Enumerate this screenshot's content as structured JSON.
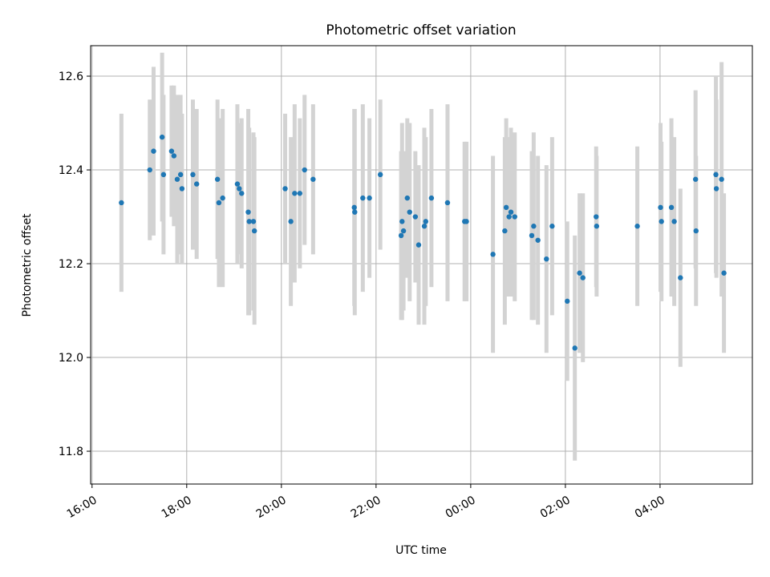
{
  "chart_data": {
    "type": "scatter",
    "title": "Photometric offset variation",
    "xlabel": "UTC time",
    "ylabel": "Photometric offset",
    "x_tick_labels": [
      "16:00",
      "18:00",
      "20:00",
      "22:00",
      "00:00",
      "02:00",
      "04:00"
    ],
    "x_tick_hours": [
      16,
      18,
      20,
      22,
      24,
      26,
      28
    ],
    "y_tick_labels": [
      "11.8",
      "12.0",
      "12.2",
      "12.4",
      "12.6"
    ],
    "y_tick_values": [
      11.8,
      12.0,
      12.2,
      12.4,
      12.6
    ],
    "xlim_hours": [
      15.97,
      29.95
    ],
    "ylim": [
      11.73,
      12.665
    ],
    "grid": true,
    "point_color": "#1f77b4",
    "errorbar_color": "#d3d3d3",
    "series": [
      {
        "x_hours": [
          16.62,
          17.22,
          17.3,
          17.48,
          17.51,
          17.68,
          17.73,
          17.8,
          17.87,
          17.9,
          18.13,
          18.21,
          18.65,
          18.68,
          18.76,
          19.07,
          19.11,
          19.16,
          19.3,
          19.32,
          19.41,
          19.43,
          20.08,
          20.2,
          20.28,
          20.39,
          20.49,
          20.67,
          21.54,
          21.55,
          21.72,
          21.86,
          22.09,
          22.53,
          22.55,
          22.58,
          22.66,
          22.71,
          22.83,
          22.9,
          23.02,
          23.05,
          23.17,
          23.51,
          23.87,
          23.91,
          24.47,
          24.72,
          24.75,
          24.81,
          24.85,
          24.93,
          25.29,
          25.33,
          25.42,
          25.6,
          25.72,
          26.04,
          26.2,
          26.3,
          26.37,
          26.65,
          26.66,
          27.52,
          28.01,
          28.03,
          28.24,
          28.3,
          28.43,
          28.75,
          28.76,
          29.18,
          29.19,
          29.3,
          29.35
        ],
        "y": [
          12.33,
          12.4,
          12.44,
          12.47,
          12.39,
          12.44,
          12.43,
          12.38,
          12.39,
          12.36,
          12.39,
          12.37,
          12.38,
          12.33,
          12.34,
          12.37,
          12.36,
          12.35,
          12.31,
          12.29,
          12.29,
          12.27,
          12.36,
          12.29,
          12.35,
          12.35,
          12.4,
          12.38,
          12.32,
          12.31,
          12.34,
          12.34,
          12.39,
          12.26,
          12.29,
          12.27,
          12.34,
          12.31,
          12.3,
          12.24,
          12.28,
          12.29,
          12.34,
          12.33,
          12.29,
          12.29,
          12.22,
          12.27,
          12.32,
          12.3,
          12.31,
          12.3,
          12.26,
          12.28,
          12.25,
          12.21,
          12.28,
          12.12,
          12.02,
          12.18,
          12.17,
          12.3,
          12.28,
          12.28,
          12.32,
          12.29,
          12.32,
          12.29,
          12.17,
          12.38,
          12.27,
          12.39,
          12.36,
          12.38,
          12.18
        ],
        "y_error": [
          0.19,
          0.15,
          0.18,
          0.18,
          0.17,
          0.14,
          0.15,
          0.18,
          0.17,
          0.16,
          0.16,
          0.16,
          0.17,
          0.18,
          0.19,
          0.17,
          0.14,
          0.16,
          0.22,
          0.2,
          0.19,
          0.2,
          0.16,
          0.18,
          0.19,
          0.16,
          0.16,
          0.16,
          0.21,
          0.22,
          0.2,
          0.17,
          0.16,
          0.18,
          0.21,
          0.17,
          0.17,
          0.19,
          0.14,
          0.17,
          0.21,
          0.18,
          0.19,
          0.21,
          0.17,
          0.17,
          0.21,
          0.2,
          0.19,
          0.17,
          0.18,
          0.18,
          0.18,
          0.2,
          0.18,
          0.2,
          0.19,
          0.17,
          0.24,
          0.17,
          0.18,
          0.15,
          0.15,
          0.17,
          0.18,
          0.17,
          0.19,
          0.18,
          0.19,
          0.19,
          0.16,
          0.21,
          0.19,
          0.25,
          0.17
        ]
      }
    ]
  }
}
